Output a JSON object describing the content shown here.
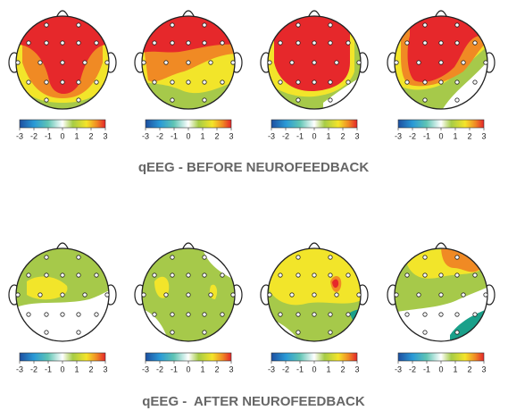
{
  "colorbar": {
    "ticks": [
      -3,
      -2,
      -1,
      0,
      1,
      2,
      3
    ]
  },
  "sections": [
    {
      "title": "qEEG - BEFORE NEUROFEEDBACK"
    },
    {
      "title": "qEEG -  AFTER NEUROFEEDBACK"
    }
  ]
}
